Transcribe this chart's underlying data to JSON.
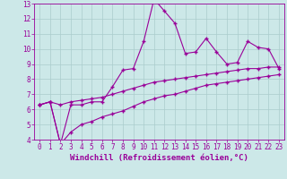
{
  "xlabel": "Windchill (Refroidissement éolien,°C)",
  "x_values": [
    0,
    1,
    2,
    3,
    4,
    5,
    6,
    7,
    8,
    9,
    10,
    11,
    12,
    13,
    14,
    15,
    16,
    17,
    18,
    19,
    20,
    21,
    22,
    23
  ],
  "line1": [
    6.3,
    6.5,
    3.7,
    6.3,
    6.3,
    6.5,
    6.5,
    7.5,
    8.6,
    8.7,
    10.5,
    13.3,
    12.5,
    11.7,
    9.7,
    9.8,
    10.7,
    9.8,
    9.0,
    9.1,
    10.5,
    10.1,
    10.0,
    8.7
  ],
  "line2": [
    6.3,
    6.5,
    6.3,
    6.5,
    6.6,
    6.7,
    6.8,
    7.0,
    7.2,
    7.4,
    7.6,
    7.8,
    7.9,
    8.0,
    8.1,
    8.2,
    8.3,
    8.4,
    8.5,
    8.6,
    8.7,
    8.7,
    8.8,
    8.8
  ],
  "line3": [
    6.3,
    6.5,
    3.7,
    4.5,
    5.0,
    5.2,
    5.5,
    5.7,
    5.9,
    6.2,
    6.5,
    6.7,
    6.9,
    7.0,
    7.2,
    7.4,
    7.6,
    7.7,
    7.8,
    7.9,
    8.0,
    8.1,
    8.2,
    8.3
  ],
  "line_color": "#990099",
  "bg_color": "#cce8e8",
  "grid_color": "#aacccc",
  "xlim": [
    -0.5,
    23.5
  ],
  "ylim": [
    4,
    13
  ],
  "yticks": [
    4,
    5,
    6,
    7,
    8,
    9,
    10,
    11,
    12,
    13
  ],
  "xticks": [
    0,
    1,
    2,
    3,
    4,
    5,
    6,
    7,
    8,
    9,
    10,
    11,
    12,
    13,
    14,
    15,
    16,
    17,
    18,
    19,
    20,
    21,
    22,
    23
  ],
  "marker": "+",
  "marker_size": 3,
  "line_width": 0.8,
  "tick_fontsize": 5.5,
  "label_fontsize": 6.5
}
